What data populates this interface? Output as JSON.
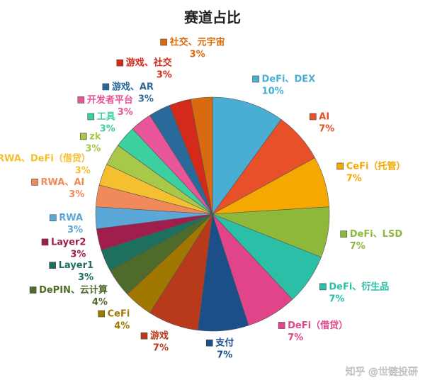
{
  "chart_data": {
    "type": "pie",
    "title": "赛道占比",
    "watermark": "知乎 @世链投研",
    "categories": [
      "DeFi、DEX",
      "AI",
      "CeFi（托管）",
      "DeFi、LSD",
      "DeFi、衍生品",
      "DeFi（借贷）",
      "支付",
      "游戏",
      "CeFi",
      "DePIN、云计算",
      "Layer1",
      "Layer2",
      "RWA",
      "RWA、AI",
      "RWA、DeFi（借贷）",
      "zk",
      "工具",
      "开发者平台",
      "游戏、AR",
      "游戏、社交",
      "社交、元宇宙"
    ],
    "values": [
      10,
      7,
      7,
      7,
      7,
      7,
      7,
      7,
      4,
      4,
      3,
      3,
      3,
      3,
      3,
      3,
      3,
      3,
      3,
      3,
      3
    ],
    "value_labels": [
      "10%",
      "7%",
      "7%",
      "7%",
      "7%",
      "7%",
      "7%",
      "7%",
      "4%",
      "4%",
      "3%",
      "3%",
      "3%",
      "3%",
      "3%",
      "3%",
      "3%",
      "3%",
      "3%",
      "3%",
      "3%"
    ],
    "colors": [
      "#4aaed4",
      "#e8502a",
      "#f5a800",
      "#8db83a",
      "#2bbfa8",
      "#e0458a",
      "#1a4f8a",
      "#b83a1a",
      "#a07800",
      "#4f6b2a",
      "#1d6f5e",
      "#a01e4e",
      "#5ba7d8",
      "#f08a5a",
      "#f5c030",
      "#a8c84a",
      "#3ccfa0",
      "#e8559a",
      "#2a6a9a",
      "#d42a1a",
      "#d96a10"
    ]
  }
}
